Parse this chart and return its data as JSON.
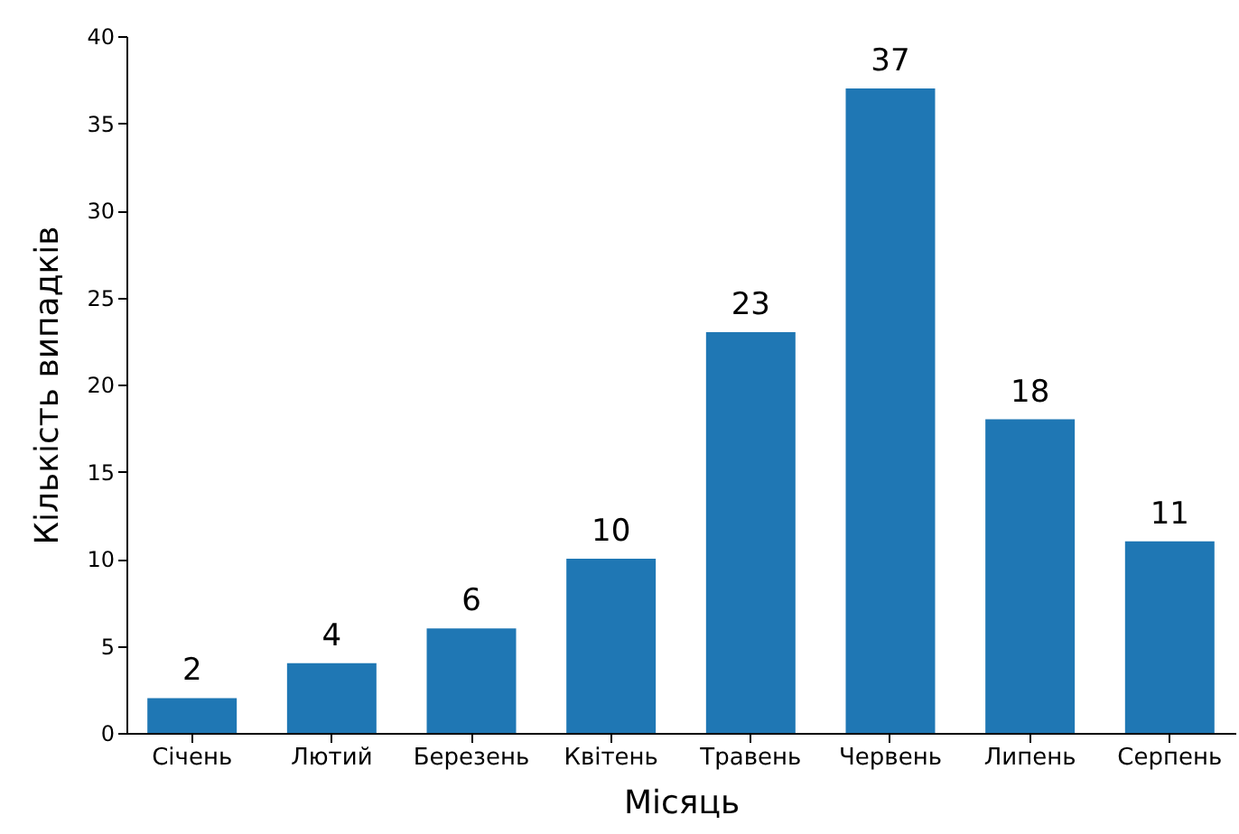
{
  "chart_data": {
    "type": "bar",
    "xlabel": "Місяць",
    "ylabel": "Кількість випадків",
    "categories": [
      "Січень",
      "Лютий",
      "Березень",
      "Квітень",
      "Травень",
      "Червень",
      "Липень",
      "Серпень"
    ],
    "values": [
      2,
      4,
      6,
      10,
      23,
      37,
      18,
      11
    ],
    "color": "#1f77b4",
    "ylim": [
      0,
      40
    ],
    "yticks": [
      0,
      5,
      10,
      15,
      20,
      25,
      30,
      35,
      40
    ],
    "grid": false,
    "data_labels": true
  }
}
